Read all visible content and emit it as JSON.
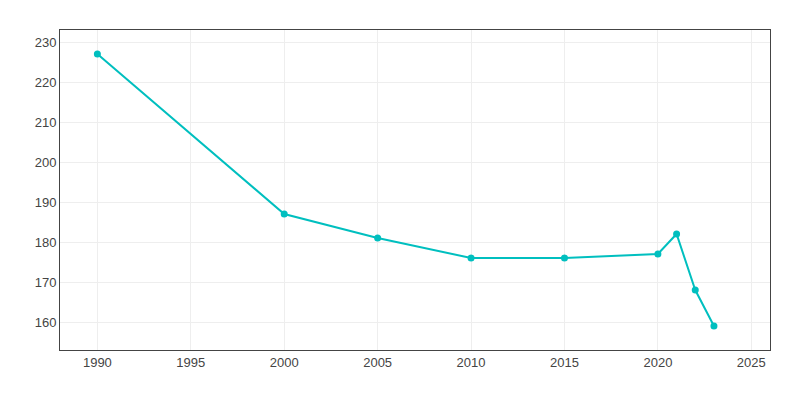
{
  "chart_data": {
    "type": "line",
    "x": [
      1990,
      2000,
      2005,
      2010,
      2015,
      2020,
      2021,
      2022,
      2023
    ],
    "values": [
      227,
      187,
      181,
      176,
      176,
      177,
      182,
      168,
      159
    ],
    "color": "#00BFBF",
    "marker": "circle",
    "xlim": [
      1988,
      2026
    ],
    "ylim": [
      153,
      233
    ],
    "xticks": [
      1990,
      1995,
      2000,
      2005,
      2010,
      2015,
      2020,
      2025
    ],
    "yticks": [
      160,
      170,
      180,
      190,
      200,
      210,
      220,
      230
    ],
    "grid": true
  }
}
